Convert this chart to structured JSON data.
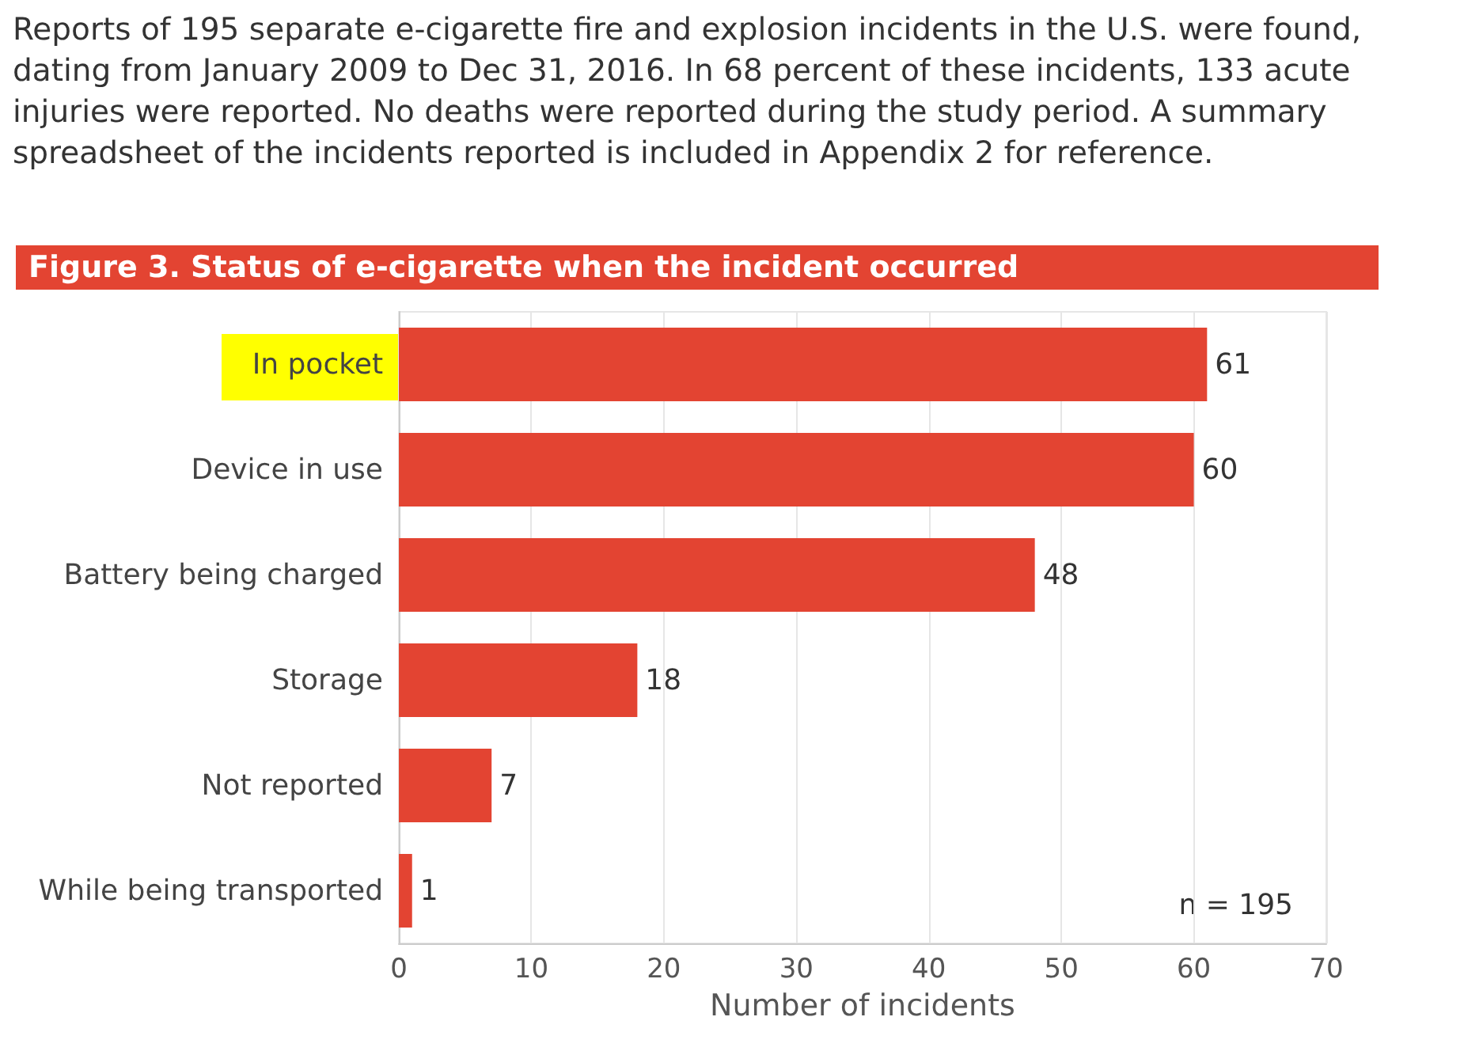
{
  "chart_data": {
    "type": "bar",
    "orientation": "horizontal",
    "title": "Figure 3. Status of e-cigarette when the incident occurred",
    "categories": [
      "In pocket",
      "Device in use",
      "Battery being charged",
      "Storage",
      "Not reported",
      "While being transported"
    ],
    "values": [
      61,
      60,
      48,
      18,
      7,
      1
    ],
    "color": "#e34432",
    "xlim": [
      0,
      70
    ],
    "xticks": [
      0,
      10,
      20,
      30,
      40,
      50,
      60,
      70
    ],
    "xlabel": "Number of incidents",
    "grid": "x",
    "data_labels": true,
    "annotations": [
      "Reports of 195 separate e-cigarette fire and explosion incidents in the U.S. were found, dating from January 2009 to Dec 31, 2016. In 68 percent of these incidents, 133 acute injuries were reported. No deaths were reported during the study period. A summary spreadsheet of the incidents reported is included in Appendix 2 for reference.",
      "n = 195"
    ]
  }
}
